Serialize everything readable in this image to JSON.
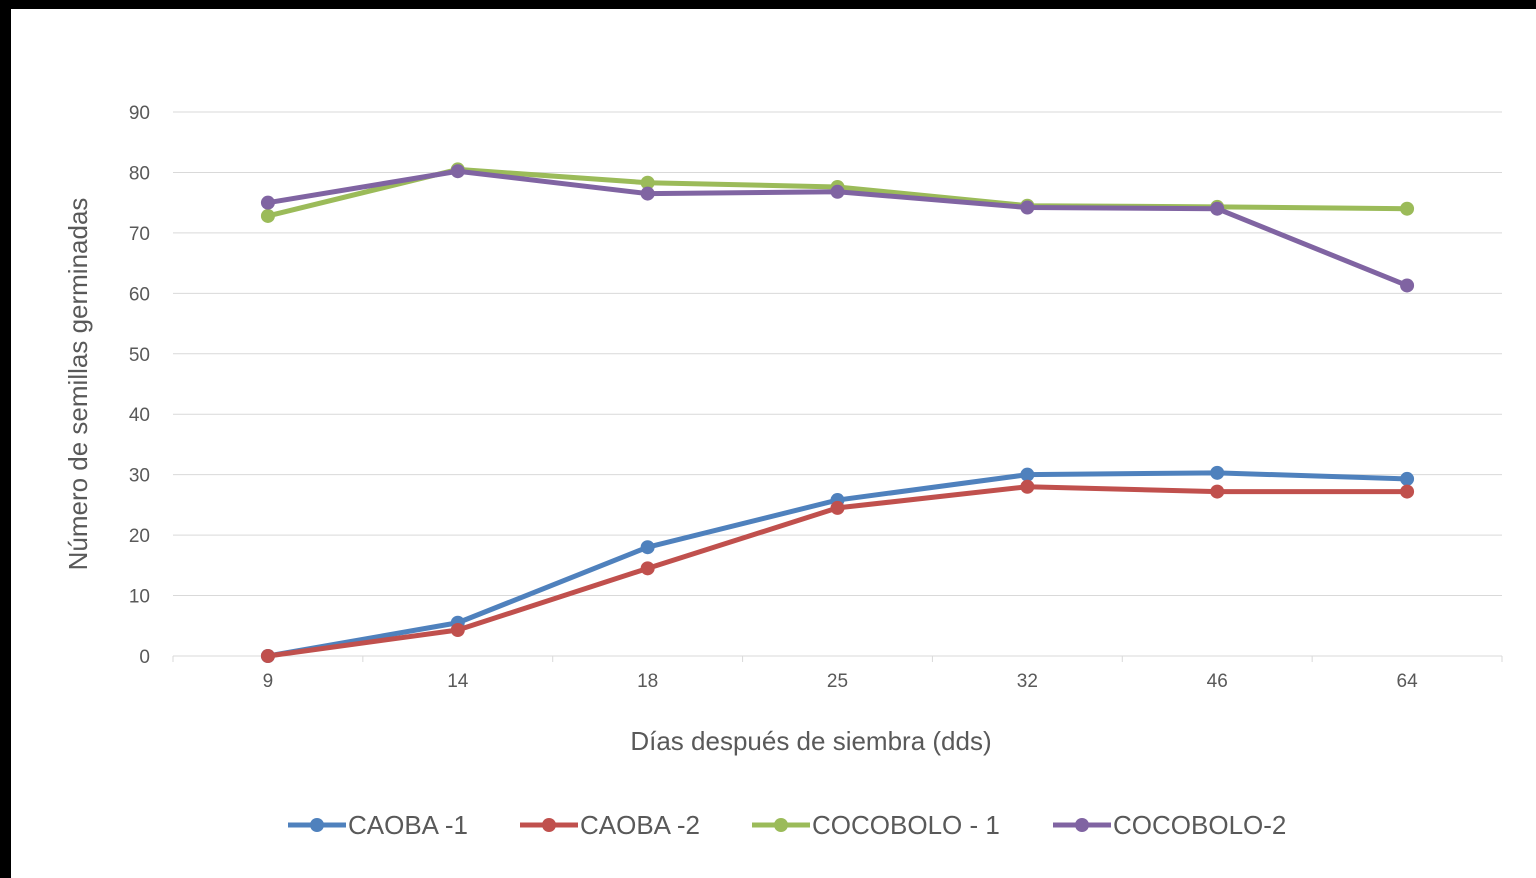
{
  "chart_data": {
    "type": "line",
    "title": "",
    "xlabel": "Días después de siembra (dds)",
    "ylabel": "Número de semillas germinadas",
    "categories": [
      "9",
      "14",
      "18",
      "25",
      "32",
      "46",
      "64"
    ],
    "ylim": [
      0,
      90
    ],
    "yticks": [
      0,
      10,
      20,
      30,
      40,
      50,
      60,
      70,
      80,
      90
    ],
    "grid": true,
    "legend_position": "bottom",
    "series": [
      {
        "name": "CAOBA -1",
        "color": "#4f81bd",
        "values": [
          0,
          5.5,
          18,
          25.8,
          30,
          30.3,
          29.3
        ]
      },
      {
        "name": "CAOBA -2",
        "color": "#c0504d",
        "values": [
          0,
          4.3,
          14.5,
          24.5,
          28,
          27.2,
          27.2
        ]
      },
      {
        "name": "COCOBOLO  - 1",
        "color": "#9bbb59",
        "values": [
          72.8,
          80.5,
          78.3,
          77.6,
          74.5,
          74.3,
          74
        ]
      },
      {
        "name": "COCOBOLO-2",
        "color": "#8064a2",
        "values": [
          75,
          80.2,
          76.5,
          76.8,
          74.2,
          74,
          61.3
        ]
      }
    ]
  }
}
